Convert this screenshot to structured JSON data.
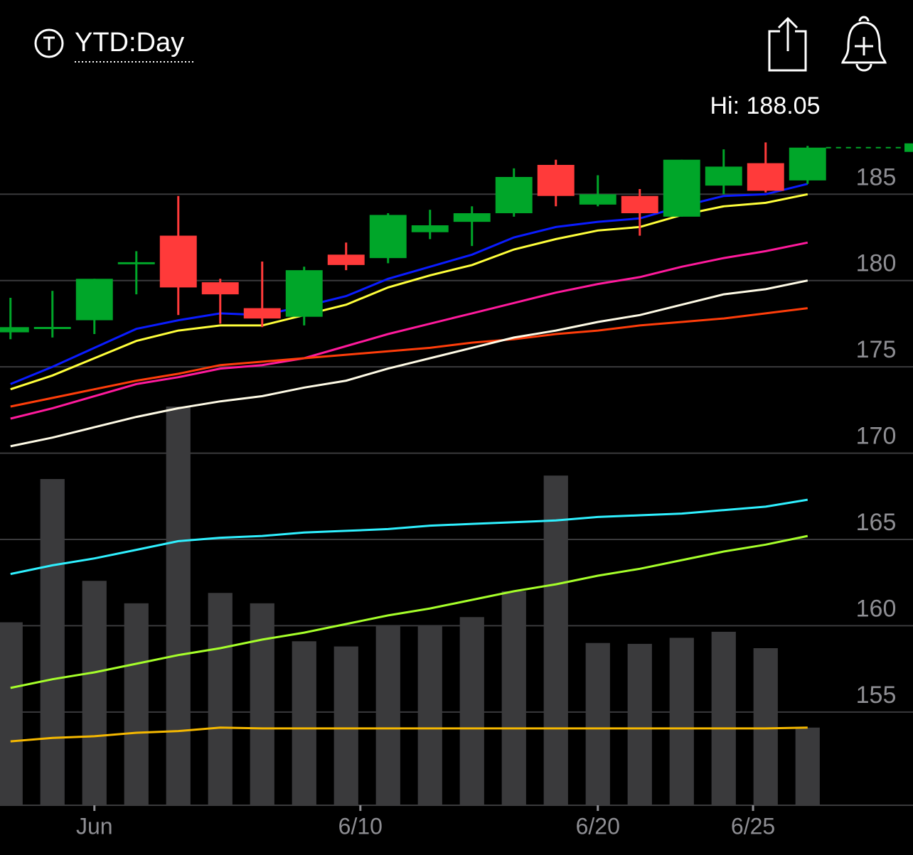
{
  "chart_data": {
    "type": "candlestick",
    "title": "YTD:Day",
    "annotation": "Hi: 188.05",
    "open": [
      177.0,
      177.25,
      177.7,
      181.0,
      182.6,
      179.9,
      178.4,
      177.9,
      181.5,
      181.3,
      182.8,
      183.4,
      183.9,
      186.7,
      184.4,
      184.9,
      183.7,
      185.5,
      186.8,
      185.8
    ],
    "high": [
      179.0,
      179.4,
      180.1,
      181.7,
      184.9,
      180.1,
      181.1,
      180.8,
      182.2,
      183.9,
      184.1,
      184.3,
      186.5,
      187.0,
      186.1,
      185.3,
      187.0,
      187.6,
      188.0,
      187.8
    ],
    "low": [
      176.6,
      176.7,
      176.9,
      179.2,
      178.0,
      177.5,
      177.3,
      177.4,
      180.6,
      181.0,
      182.4,
      182.0,
      183.7,
      184.3,
      184.3,
      182.6,
      183.7,
      185.0,
      185.1,
      185.6
    ],
    "close": [
      177.3,
      177.25,
      180.1,
      181.0,
      179.6,
      179.2,
      177.8,
      180.6,
      180.9,
      183.8,
      183.2,
      183.9,
      186.0,
      184.9,
      185.0,
      183.9,
      187.0,
      186.6,
      185.2,
      187.7
    ],
    "up_color": "#00a629",
    "down_color": "#ff3a3a",
    "volume": {
      "color": "#3a3a3c",
      "values": [
        160.2,
        168.5,
        162.6,
        161.3,
        172.7,
        161.9,
        161.3,
        159.1,
        158.8,
        160.0,
        160.0,
        160.5,
        162.0,
        168.7,
        159.0,
        158.95,
        159.3,
        159.65,
        158.7,
        154.1
      ]
    },
    "lines": [
      {
        "color": "#0a1cff",
        "values": [
          174.0,
          175.0,
          176.1,
          177.2,
          177.7,
          178.1,
          178.0,
          178.5,
          179.1,
          180.1,
          180.8,
          181.5,
          182.5,
          183.1,
          183.4,
          183.6,
          184.3,
          184.9,
          185.0,
          185.6
        ]
      },
      {
        "color": "#ffff3a",
        "values": [
          173.7,
          174.5,
          175.5,
          176.5,
          177.1,
          177.4,
          177.4,
          178.0,
          178.6,
          179.6,
          180.3,
          180.9,
          181.8,
          182.4,
          182.9,
          183.1,
          183.8,
          184.3,
          184.5,
          185.0
        ]
      },
      {
        "color": "#ff1a9c",
        "values": [
          172.0,
          172.6,
          173.3,
          174.0,
          174.4,
          174.9,
          175.1,
          175.5,
          176.2,
          176.9,
          177.5,
          178.1,
          178.7,
          179.3,
          179.8,
          180.2,
          180.8,
          181.3,
          181.7,
          182.2
        ]
      },
      {
        "color": "#ff3d0a",
        "values": [
          172.7,
          173.2,
          173.7,
          174.2,
          174.6,
          175.1,
          175.3,
          175.5,
          175.7,
          175.9,
          176.1,
          176.4,
          176.6,
          176.9,
          177.1,
          177.4,
          177.6,
          177.8,
          178.1,
          178.4
        ]
      },
      {
        "color": "#fffbe6",
        "values": [
          170.4,
          170.9,
          171.5,
          172.1,
          172.6,
          173.0,
          173.3,
          173.8,
          174.2,
          174.9,
          175.5,
          176.1,
          176.7,
          177.1,
          177.6,
          178.0,
          178.6,
          179.2,
          179.5,
          180.0
        ]
      },
      {
        "color": "#2ff0ff",
        "values": [
          163.0,
          163.5,
          163.9,
          164.4,
          164.9,
          165.1,
          165.2,
          165.4,
          165.5,
          165.6,
          165.8,
          165.9,
          166.0,
          166.1,
          166.3,
          166.4,
          166.5,
          166.7,
          166.9,
          167.3
        ]
      },
      {
        "color": "#a6ff2a",
        "values": [
          156.4,
          156.9,
          157.3,
          157.8,
          158.3,
          158.7,
          159.2,
          159.6,
          160.1,
          160.6,
          161.0,
          161.5,
          162.0,
          162.4,
          162.9,
          163.3,
          163.8,
          164.3,
          164.7,
          165.2
        ]
      },
      {
        "color": "#f5b800",
        "values": [
          153.3,
          153.5,
          153.6,
          153.8,
          153.9,
          154.1,
          154.05,
          154.05,
          154.05,
          154.05,
          154.05,
          154.05,
          154.05,
          154.05,
          154.05,
          154.05,
          154.05,
          154.05,
          154.05,
          154.1
        ]
      }
    ],
    "last_color": "#00a629",
    "xlim": [
      -0.25,
      19.75
    ],
    "xticks": [
      {
        "value": 2,
        "label": "Jun"
      },
      {
        "value": 8.34,
        "label": "6/10"
      },
      {
        "value": 14,
        "label": "6/20"
      },
      {
        "value": 17.7,
        "label": "6/25"
      }
    ],
    "ylim": [
      149.6,
      190.9
    ],
    "yticks": [
      155,
      160,
      165,
      170,
      175,
      180,
      185
    ],
    "grid": true
  }
}
